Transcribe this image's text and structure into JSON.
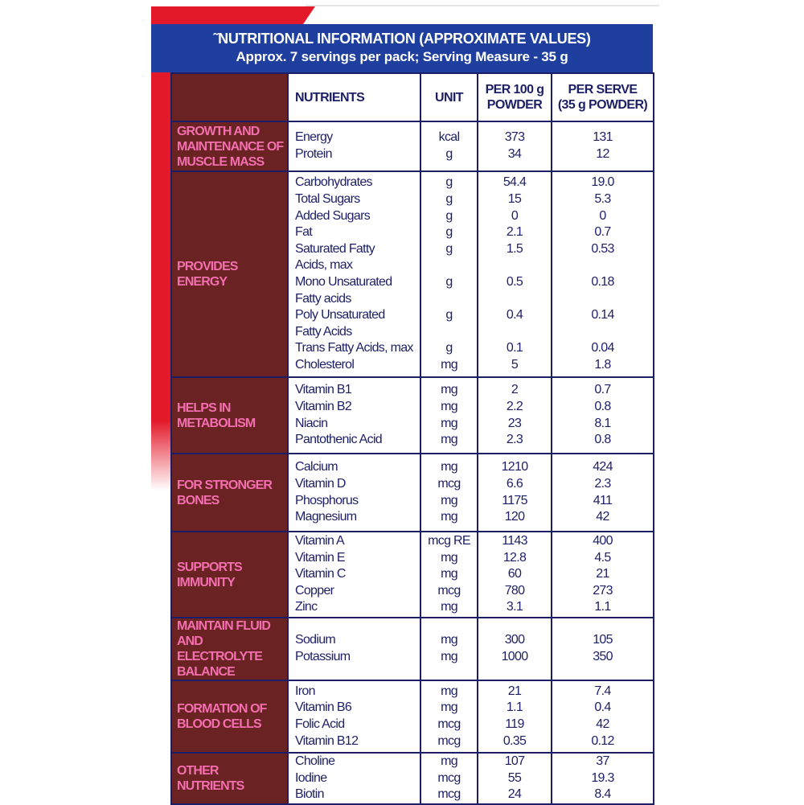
{
  "header": {
    "title": "˜NUTRITIONAL INFORMATION (APPROXIMATE VALUES)",
    "subtitle": "Approx. 7 servings per pack; Serving Measure - 35 g"
  },
  "columns": {
    "nutrients": "NUTRIENTS",
    "unit": "UNIT",
    "per100": [
      "PER 100 g",
      "POWDER"
    ],
    "perserve": [
      "PER SERVE",
      "(35 g POWDER)"
    ]
  },
  "colors": {
    "blue": "#1f3f9e",
    "red": "#e3192a",
    "brown": "#6b2222",
    "pink": "#f46fb0",
    "navy": "#1c1f66"
  },
  "groups": [
    {
      "label": [
        "GROWTH AND",
        "MAINTENANCE OF",
        "MUSCLE MASS"
      ],
      "items": [
        {
          "name": [
            "Energy"
          ],
          "unit": "kcal",
          "per100": "373",
          "perserve": "131"
        },
        {
          "name": [
            "Protein"
          ],
          "unit": "g",
          "per100": "34",
          "perserve": "12"
        }
      ]
    },
    {
      "label": [
        "PROVIDES",
        "ENERGY"
      ],
      "items": [
        {
          "name": [
            "Carbohydrates"
          ],
          "unit": "g",
          "per100": "54.4",
          "perserve": "19.0"
        },
        {
          "name": [
            "Total Sugars"
          ],
          "unit": "g",
          "per100": "15",
          "perserve": "5.3"
        },
        {
          "name": [
            "Added Sugars"
          ],
          "unit": "g",
          "per100": "0",
          "perserve": "0"
        },
        {
          "name": [
            "Fat"
          ],
          "unit": "g",
          "per100": "2.1",
          "perserve": "0.7"
        },
        {
          "name": [
            "Saturated Fatty",
            " Acids, max"
          ],
          "unit": "g",
          "per100": "1.5",
          "perserve": "0.53"
        },
        {
          "name": [
            "Mono Unsaturated",
            "Fatty acids"
          ],
          "unit": "g",
          "per100": "0.5",
          "perserve": "0.18"
        },
        {
          "name": [
            "Poly Unsaturated",
            "Fatty Acids"
          ],
          "unit": "g",
          "per100": "0.4",
          "perserve": "0.14"
        },
        {
          "name": [
            "Trans Fatty Acids, max"
          ],
          "unit": "g",
          "per100": "0.1",
          "perserve": "0.04"
        },
        {
          "name": [
            "Cholesterol"
          ],
          "unit": "mg",
          "per100": "5",
          "perserve": "1.8"
        }
      ]
    },
    {
      "label": [
        "HELPS IN",
        "METABOLISM"
      ],
      "items": [
        {
          "name": [
            "Vitamin B1"
          ],
          "unit": "mg",
          "per100": "2",
          "perserve": "0.7"
        },
        {
          "name": [
            "Vitamin B2"
          ],
          "unit": "mg",
          "per100": "2.2",
          "perserve": "0.8"
        },
        {
          "name": [
            "Niacin"
          ],
          "unit": "mg",
          "per100": "23",
          "perserve": "8.1"
        },
        {
          "name": [
            "Pantothenic Acid"
          ],
          "unit": "mg",
          "per100": "2.3",
          "perserve": "0.8"
        }
      ]
    },
    {
      "label": [
        "FOR STRONGER",
        "BONES"
      ],
      "items": [
        {
          "name": [
            "Calcium"
          ],
          "unit": "mg",
          "per100": "1210",
          "perserve": "424"
        },
        {
          "name": [
            "Vitamin D"
          ],
          "unit": "mcg",
          "per100": "6.6",
          "perserve": "2.3"
        },
        {
          "name": [
            "Phosphorus"
          ],
          "unit": "mg",
          "per100": "1175",
          "perserve": "411"
        },
        {
          "name": [
            "Magnesium"
          ],
          "unit": "mg",
          "per100": "120",
          "perserve": "42"
        }
      ]
    },
    {
      "label": [
        "SUPPORTS",
        "IMMUNITY"
      ],
      "items": [
        {
          "name": [
            "Vitamin A"
          ],
          "unit": "mcg RE",
          "per100": "1143",
          "perserve": "400"
        },
        {
          "name": [
            "Vitamin E"
          ],
          "unit": "mg",
          "per100": "12.8",
          "perserve": "4.5"
        },
        {
          "name": [
            "Vitamin C"
          ],
          "unit": "mg",
          "per100": "60",
          "perserve": "21"
        },
        {
          "name": [
            "Copper"
          ],
          "unit": "mcg",
          "per100": "780",
          "perserve": "273"
        },
        {
          "name": [
            "Zinc"
          ],
          "unit": "mg",
          "per100": "3.1",
          "perserve": "1.1"
        }
      ]
    },
    {
      "label": [
        "MAINTAIN FLUID",
        "AND ELECTROLYTE",
        "BALANCE"
      ],
      "items": [
        {
          "name": [
            "Sodium"
          ],
          "unit": "mg",
          "per100": "300",
          "perserve": "105"
        },
        {
          "name": [
            "Potassium"
          ],
          "unit": "mg",
          "per100": "1000",
          "perserve": "350"
        }
      ]
    },
    {
      "label": [
        "FORMATION OF",
        "BLOOD CELLS"
      ],
      "items": [
        {
          "name": [
            "Iron"
          ],
          "unit": "mg",
          "per100": "21",
          "perserve": "7.4"
        },
        {
          "name": [
            "Vitamin B6"
          ],
          "unit": "mg",
          "per100": "1.1",
          "perserve": "0.4"
        },
        {
          "name": [
            "Folic Acid"
          ],
          "unit": "mcg",
          "per100": "119",
          "perserve": "42"
        },
        {
          "name": [
            "Vitamin B12"
          ],
          "unit": "mcg",
          "per100": "0.35",
          "perserve": "0.12"
        }
      ]
    },
    {
      "label": [
        "OTHER",
        "NUTRIENTS"
      ],
      "items": [
        {
          "name": [
            "Choline"
          ],
          "unit": "mg",
          "per100": "107",
          "perserve": "37"
        },
        {
          "name": [
            "Iodine"
          ],
          "unit": "mcg",
          "per100": "55",
          "perserve": "19.3"
        },
        {
          "name": [
            "Biotin"
          ],
          "unit": "mcg",
          "per100": "24",
          "perserve": "8.4"
        }
      ]
    }
  ]
}
